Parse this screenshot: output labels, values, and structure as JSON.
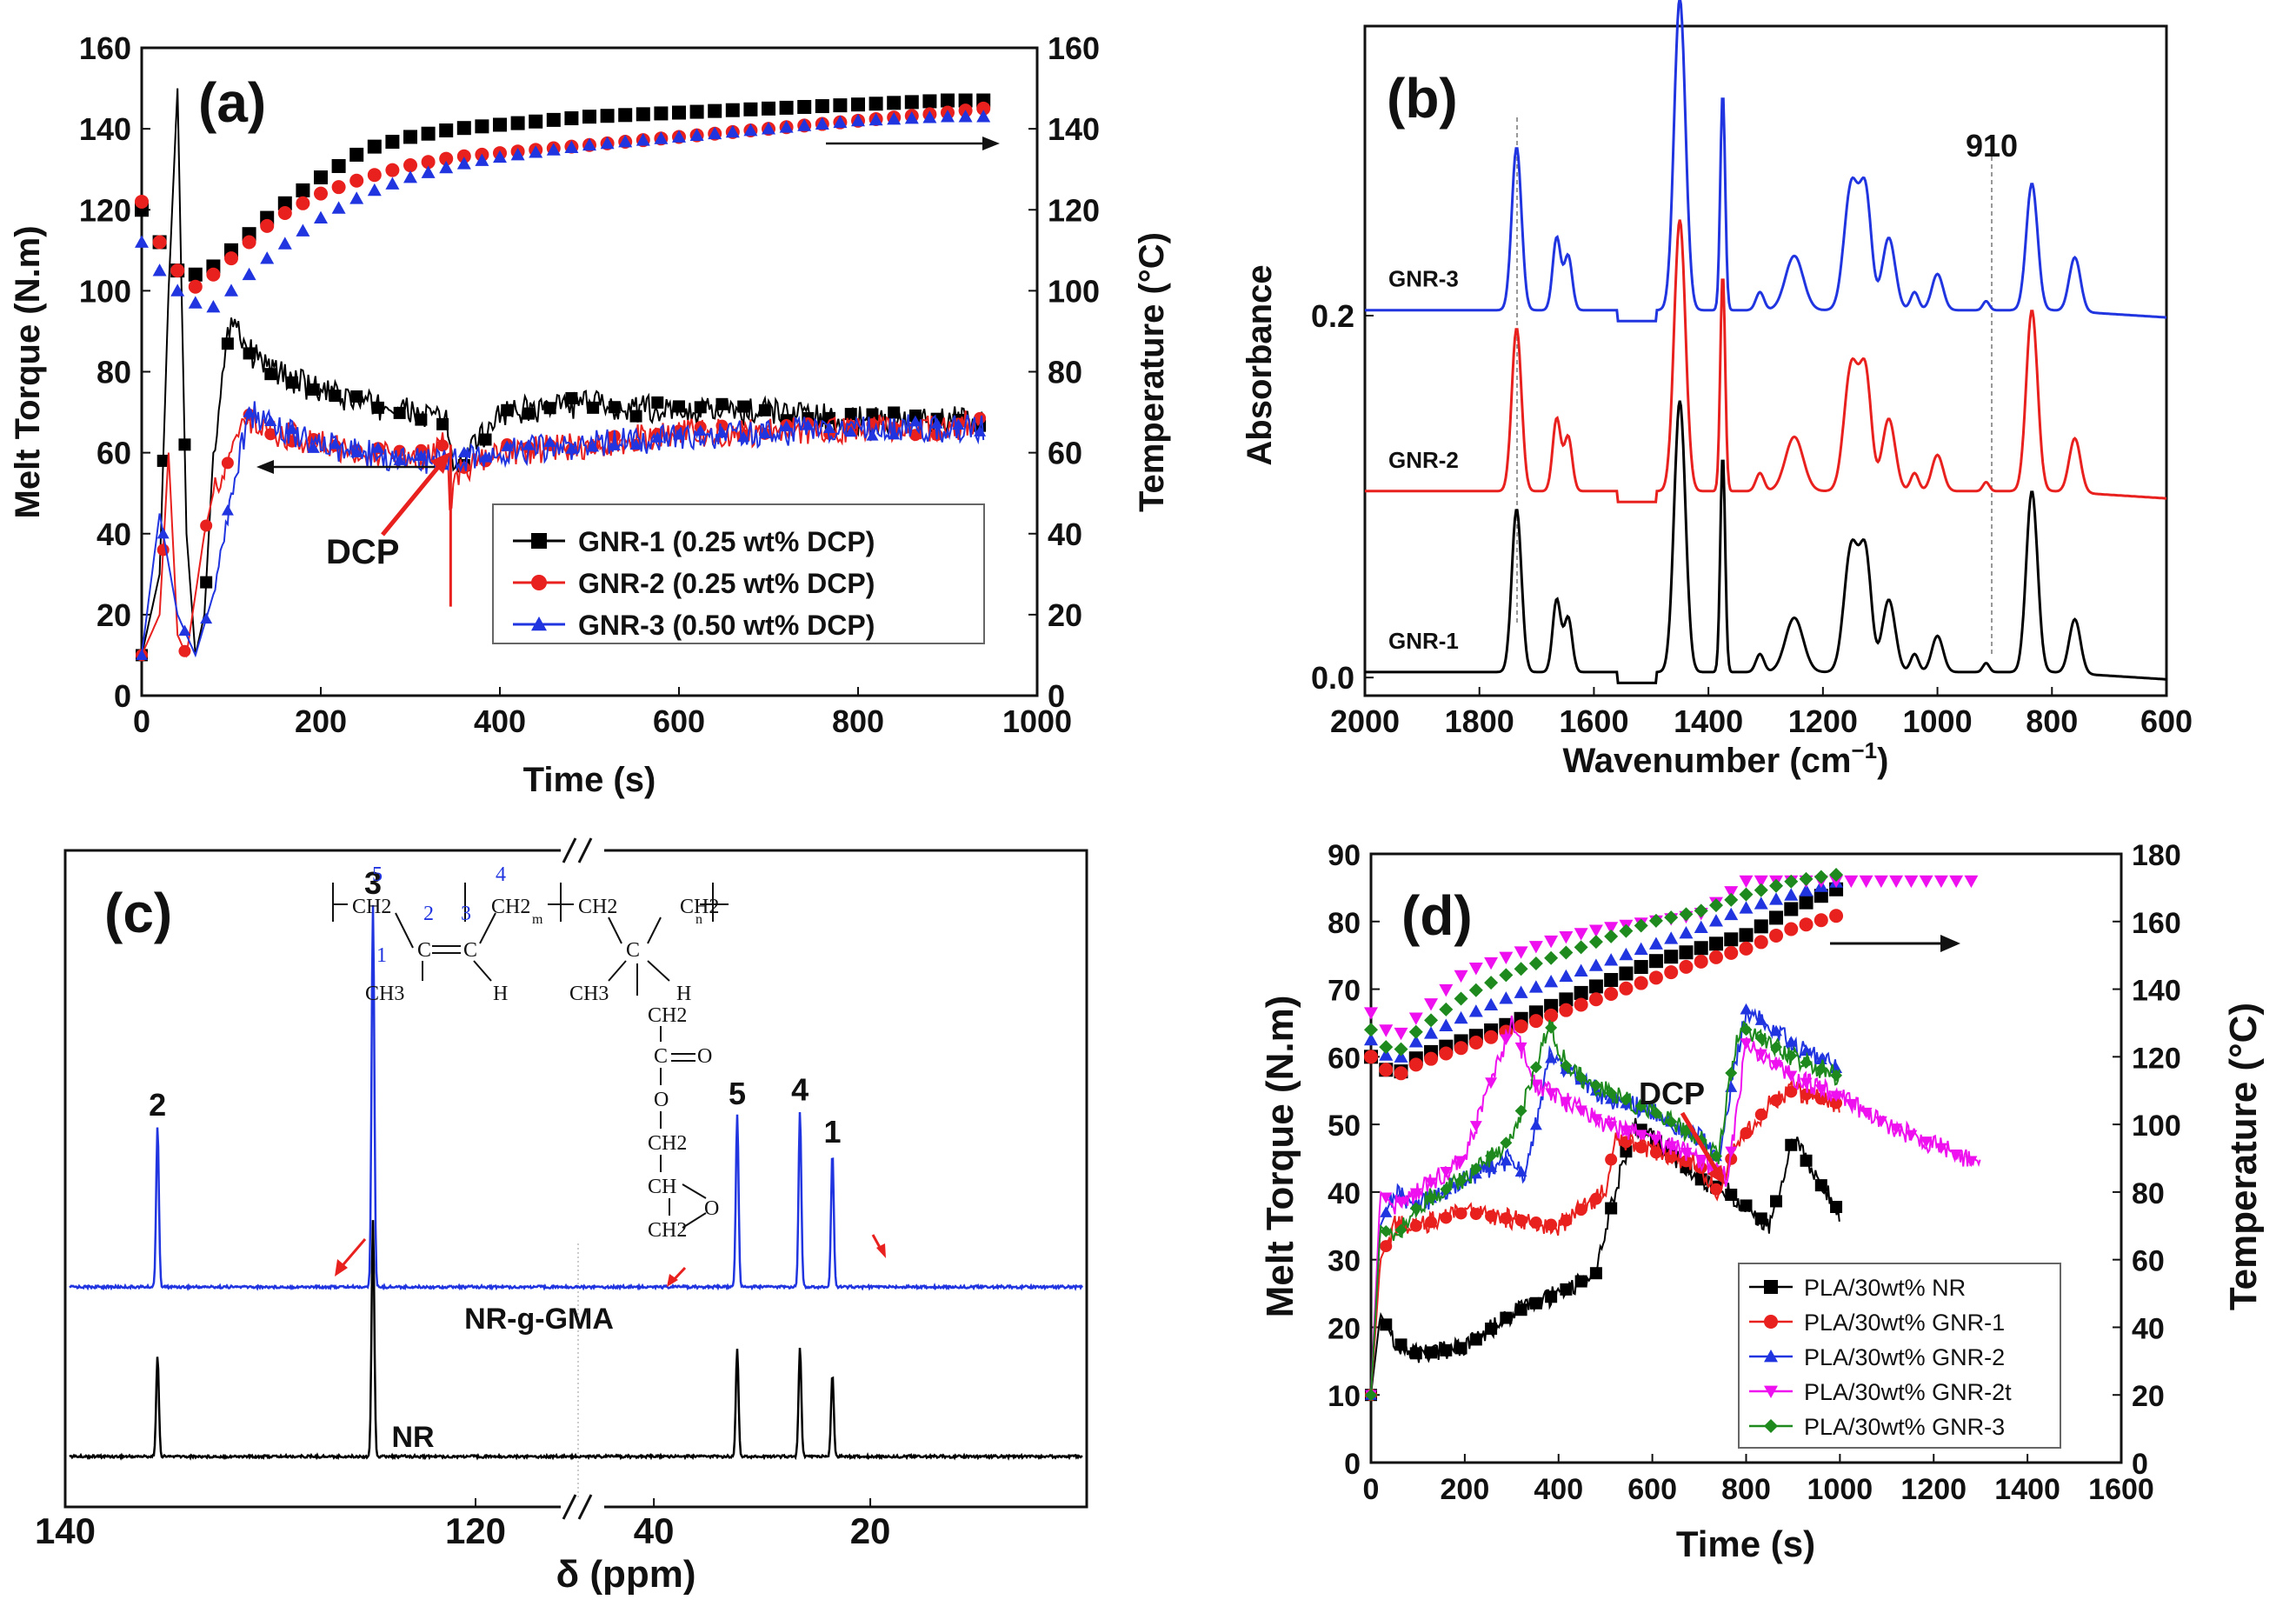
{
  "chart_data": [
    {
      "panel": "(a)",
      "type": "line",
      "xlabel": "Time (s)",
      "ylabel": "Melt Torque (N.m)",
      "y2label": "Temperature (°C)",
      "xlim": [
        0,
        1000
      ],
      "ylim": [
        0,
        160
      ],
      "y2lim": [
        0,
        160
      ],
      "xticks": [
        "0",
        "200",
        "400",
        "600",
        "800",
        "1000"
      ],
      "yticks": [
        "0",
        "20",
        "40",
        "60",
        "80",
        "100",
        "120",
        "140",
        "160"
      ],
      "y2ticks": [
        "0",
        "20",
        "40",
        "60",
        "80",
        "100",
        "120",
        "140",
        "160"
      ],
      "annotation": "DCP",
      "legend_position": "bottom-right",
      "series": [
        {
          "name": "GNR-1 (0.25 wt% DCP)",
          "color": "#000000",
          "marker": "square",
          "torque_t": [
            0,
            20,
            30,
            40,
            50,
            60,
            70,
            80,
            100,
            120,
            150,
            200,
            250,
            300,
            340,
            350,
            400,
            500,
            600,
            700,
            800,
            900,
            940
          ],
          "torque": [
            10,
            30,
            100,
            150,
            40,
            10,
            20,
            60,
            95,
            85,
            80,
            75,
            72,
            70,
            68,
            55,
            70,
            72,
            70,
            70,
            68,
            68,
            68
          ],
          "temp_t": [
            0,
            20,
            40,
            60,
            80,
            100,
            150,
            200,
            250,
            300,
            350,
            400,
            500,
            600,
            700,
            800,
            900,
            940
          ],
          "temp": [
            120,
            112,
            105,
            104,
            106,
            110,
            120,
            128,
            135,
            138,
            140,
            141,
            143,
            144,
            145,
            146,
            147,
            147
          ]
        },
        {
          "name": "GNR-2 (0.25 wt% DCP)",
          "color": "#e8201e",
          "marker": "circle",
          "torque_t": [
            0,
            20,
            30,
            40,
            50,
            60,
            70,
            80,
            100,
            120,
            150,
            200,
            250,
            300,
            340,
            345,
            350,
            400,
            500,
            600,
            700,
            800,
            900,
            940
          ],
          "torque": [
            10,
            20,
            60,
            15,
            10,
            25,
            40,
            50,
            60,
            68,
            65,
            62,
            60,
            58,
            62,
            45,
            55,
            60,
            62,
            65,
            65,
            66,
            66,
            68
          ],
          "temp_t": [
            0,
            20,
            40,
            60,
            80,
            100,
            150,
            200,
            250,
            300,
            350,
            400,
            500,
            600,
            700,
            800,
            900,
            940
          ],
          "temp": [
            122,
            112,
            105,
            101,
            104,
            108,
            118,
            124,
            128,
            131,
            133,
            134,
            136,
            138,
            140,
            142,
            144,
            145
          ]
        },
        {
          "name": "GNR-3 (0.50 wt% DCP)",
          "color": "#2035e0",
          "marker": "triangle",
          "torque_t": [
            0,
            20,
            40,
            60,
            80,
            100,
            120,
            150,
            200,
            250,
            300,
            350,
            400,
            500,
            600,
            700,
            800,
            900,
            940
          ],
          "torque": [
            10,
            45,
            20,
            10,
            25,
            50,
            70,
            66,
            62,
            60,
            58,
            58,
            60,
            62,
            64,
            65,
            66,
            66,
            66
          ],
          "temp_t": [
            0,
            20,
            40,
            60,
            80,
            100,
            150,
            200,
            250,
            300,
            350,
            400,
            500,
            600,
            700,
            800,
            900,
            940
          ],
          "temp": [
            112,
            105,
            100,
            97,
            96,
            100,
            110,
            118,
            124,
            128,
            131,
            133,
            136,
            138,
            140,
            142,
            143,
            143
          ]
        }
      ]
    },
    {
      "panel": "(b)",
      "type": "line",
      "xlabel": "Wavenumber (cm−1)",
      "ylabel": "Absorbance",
      "xlim": [
        2000,
        600
      ],
      "ylim": [
        -0.01,
        0.36
      ],
      "xticks": [
        "2000",
        "1800",
        "1600",
        "1400",
        "1200",
        "1000",
        "800",
        "600"
      ],
      "yticks": [
        "0.0",
        "0.2"
      ],
      "annotation": "910",
      "series": [
        {
          "name": "GNR-1",
          "color": "#000000",
          "offset": 0.0
        },
        {
          "name": "GNR-2",
          "color": "#e8201e",
          "offset": 0.1
        },
        {
          "name": "GNR-3",
          "color": "#2035e0",
          "offset": 0.2
        }
      ],
      "peaks_cm": [
        1735,
        1665,
        1645,
        1450,
        1375,
        1310,
        1250,
        1150,
        1125,
        1085,
        1040,
        1000,
        915,
        835,
        760
      ],
      "peak_heights": [
        0.09,
        0.04,
        0.03,
        0.15,
        0.12,
        0.01,
        0.03,
        0.07,
        0.06,
        0.04,
        0.01,
        0.02,
        0.005,
        0.1,
        0.03
      ]
    },
    {
      "panel": "(c)",
      "type": "line",
      "xlabel": "δ (ppm)",
      "xticks": [
        "140",
        "120",
        "40",
        "20"
      ],
      "series": [
        {
          "name": "NR-g-GMA",
          "color": "#2035e0"
        },
        {
          "name": "NR",
          "color": "#000000"
        }
      ],
      "peak_labels": [
        "2",
        "3",
        "5",
        "4",
        "1"
      ],
      "peaks_ppm": [
        135.5,
        125.0,
        32.3,
        26.5,
        23.5
      ],
      "structure_labels": [
        "5",
        "2",
        "3",
        "4",
        "1",
        "CH2",
        "CH2",
        "CH3",
        "H",
        "C",
        "C",
        "m",
        "n",
        "CH2",
        "C",
        "H",
        "CH3",
        "CH2",
        "C",
        "O",
        "O",
        "CH2",
        "CH",
        "CH2",
        "O"
      ]
    },
    {
      "panel": "(d)",
      "type": "line",
      "xlabel": "Time (s)",
      "ylabel": "Melt Torque (N.m)",
      "y2label": "Temperature (°C)",
      "xlim": [
        0,
        1600
      ],
      "ylim": [
        0,
        90
      ],
      "y2lim": [
        0,
        180
      ],
      "xticks": [
        "0",
        "200",
        "400",
        "600",
        "800",
        "1000",
        "1200",
        "1400",
        "1600"
      ],
      "yticks": [
        "0",
        "10",
        "20",
        "30",
        "40",
        "50",
        "60",
        "70",
        "80",
        "90"
      ],
      "y2ticks": [
        "0",
        "20",
        "40",
        "60",
        "80",
        "100",
        "120",
        "140",
        "160",
        "180"
      ],
      "annotation": "DCP",
      "legend_position": "bottom-right",
      "series": [
        {
          "name": "PLA/30wt% NR",
          "color": "#000000",
          "marker": "square",
          "torque_t": [
            0,
            20,
            50,
            100,
            200,
            300,
            400,
            480,
            520,
            560,
            600,
            700,
            760,
            800,
            850,
            900,
            950,
            1000
          ],
          "torque": [
            10,
            22,
            18,
            16,
            17,
            22,
            25,
            28,
            40,
            50,
            48,
            42,
            40,
            38,
            35,
            48,
            42,
            37
          ],
          "temp_t": [
            0,
            50,
            100,
            200,
            300,
            400,
            500,
            600,
            700,
            800,
            900,
            1000
          ],
          "temp": [
            120,
            114,
            120,
            125,
            130,
            136,
            142,
            148,
            152,
            156,
            164,
            170
          ]
        },
        {
          "name": "PLA/30wt% GNR-1",
          "color": "#e8201e",
          "marker": "circle",
          "torque_t": [
            0,
            20,
            50,
            100,
            200,
            300,
            400,
            500,
            520,
            600,
            700,
            740,
            780,
            850,
            900,
            1000
          ],
          "torque": [
            10,
            30,
            35,
            35,
            37,
            36,
            35,
            40,
            48,
            46,
            44,
            40,
            47,
            53,
            55,
            53
          ],
          "temp_t": [
            0,
            50,
            100,
            200,
            300,
            400,
            500,
            600,
            700,
            800,
            900,
            1000
          ],
          "temp": [
            120,
            114,
            118,
            123,
            128,
            133,
            138,
            143,
            148,
            152,
            158,
            162
          ]
        },
        {
          "name": "PLA/30wt% GNR-2",
          "color": "#2035e0",
          "marker": "triangle",
          "torque_t": [
            0,
            20,
            50,
            100,
            200,
            300,
            330,
            380,
            420,
            500,
            600,
            700,
            740,
            780,
            800,
            900,
            1000
          ],
          "torque": [
            10,
            35,
            40,
            38,
            42,
            45,
            42,
            60,
            58,
            54,
            52,
            48,
            45,
            60,
            67,
            62,
            58
          ],
          "temp_t": [
            0,
            50,
            100,
            200,
            300,
            400,
            500,
            600,
            700,
            800,
            900,
            1000
          ],
          "temp": [
            125,
            118,
            125,
            132,
            138,
            143,
            148,
            153,
            158,
            164,
            168,
            172
          ]
        },
        {
          "name": "PLA/30wt% GNR-2t",
          "color": "#ee10ee",
          "marker": "triangle-down",
          "torque_t": [
            0,
            20,
            50,
            100,
            200,
            250,
            300,
            350,
            400,
            500,
            600,
            700,
            760,
            800,
            900,
            1000,
            1100,
            1200,
            1300
          ],
          "torque": [
            10,
            40,
            38,
            40,
            45,
            55,
            65,
            56,
            54,
            50,
            48,
            45,
            42,
            62,
            57,
            54,
            50,
            47,
            44
          ],
          "temp_t": [
            0,
            50,
            100,
            200,
            300,
            400,
            500,
            600,
            700,
            800,
            900,
            1000,
            1100,
            1200,
            1300
          ],
          "temp": [
            133,
            125,
            132,
            145,
            150,
            155,
            158,
            160,
            162,
            172,
            172,
            172,
            172,
            172,
            172
          ]
        },
        {
          "name": "PLA/30wt% GNR-3",
          "color": "#1e8a1e",
          "marker": "diamond",
          "torque_t": [
            0,
            20,
            50,
            100,
            200,
            300,
            350,
            380,
            420,
            500,
            600,
            700,
            740,
            780,
            800,
            900,
            1000
          ],
          "torque": [
            10,
            35,
            33,
            38,
            42,
            48,
            58,
            65,
            58,
            55,
            52,
            48,
            45,
            63,
            64,
            60,
            57
          ],
          "temp_t": [
            0,
            50,
            100,
            200,
            300,
            400,
            500,
            600,
            700,
            800,
            900,
            1000
          ],
          "temp": [
            128,
            120,
            128,
            138,
            145,
            150,
            155,
            160,
            163,
            168,
            172,
            174
          ]
        }
      ]
    }
  ]
}
